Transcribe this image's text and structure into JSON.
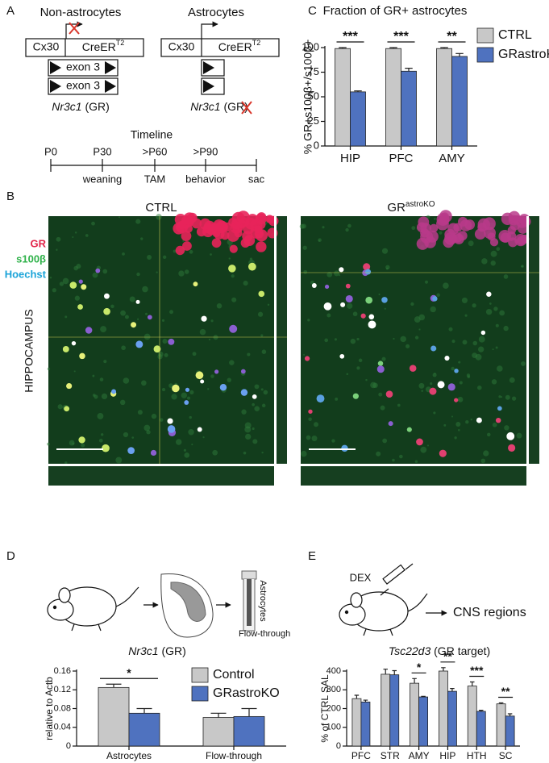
{
  "panel_labels": [
    "A",
    "B",
    "C",
    "D",
    "E"
  ],
  "diagram": {
    "non_astrocytes": "Non-astrocytes",
    "astrocytes": "Astrocytes",
    "promoter": "Cx30",
    "cre": "CreER",
    "cre_sup": "T2",
    "exon": "exon 3",
    "gene": "Nr3c1",
    "gene_suffix": "(GR)",
    "timeline_title": "Timeline",
    "timepoints": [
      "P0",
      "P30",
      ">P60",
      ">P90"
    ],
    "events": [
      "weaning",
      "TAM",
      "behavior",
      "sac"
    ]
  },
  "images": {
    "ctrl": "CTRL",
    "ko": "GR",
    "ko_sup": "astroKO",
    "stains": [
      "GR",
      "s100β",
      "Hoechst"
    ],
    "region": "HIPPOCAMPUS"
  },
  "schematic": {
    "tube_top": "Astrocytes",
    "tube_bottom": "Flow-through",
    "drug": "DEX",
    "target": "CNS regions"
  },
  "chart_data": [
    {
      "type": "bar",
      "title": "Fraction of GR+ astrocytes",
      "ylabel": "% GR+s100β+/s100β+",
      "categories": [
        "HIP",
        "PFC",
        "AMY"
      ],
      "series": [
        {
          "name": "CTRL",
          "color": "#c8c8c8",
          "values": [
            99,
            99,
            99
          ],
          "errors": [
            1,
            1,
            1
          ]
        },
        {
          "name": "GRastroKO",
          "color": "#4f72bf",
          "values": [
            55,
            76,
            91
          ],
          "errors": [
            1,
            3,
            3
          ]
        }
      ],
      "significance": [
        "***",
        "***",
        "**"
      ],
      "ylim": [
        0,
        100
      ],
      "yticks": [
        0,
        25,
        50,
        75,
        100
      ],
      "legend": "right"
    },
    {
      "type": "bar",
      "title": "Nr3c1",
      "title_suffix": "(GR)",
      "ylabel": "relative to Actb",
      "categories": [
        "Astrocytes",
        "Flow-through"
      ],
      "series": [
        {
          "name": "Control",
          "color": "#c8c8c8",
          "values": [
            0.125,
            0.061
          ],
          "errors": [
            0.007,
            0.009
          ]
        },
        {
          "name": "GRastroKO",
          "color": "#4f72bf",
          "values": [
            0.07,
            0.063
          ],
          "errors": [
            0.01,
            0.017
          ]
        }
      ],
      "significance": [
        "*",
        null
      ],
      "ylim": [
        0,
        0.16
      ],
      "yticks": [
        0,
        0.04,
        0.08,
        0.12,
        0.16
      ],
      "legend": "upper right"
    },
    {
      "type": "bar",
      "title": "Tsc22d3",
      "title_suffix": "(GR target)",
      "ylabel": "% of CTRL SAL",
      "categories": [
        "PFC",
        "STR",
        "AMY",
        "HIP",
        "HTH",
        "SC"
      ],
      "series": [
        {
          "name": "CTRL",
          "color": "#c8c8c8",
          "values": [
            253,
            383,
            335,
            400,
            320,
            225
          ],
          "errors": [
            18,
            27,
            25,
            18,
            22,
            5
          ]
        },
        {
          "name": "GRastroKO",
          "color": "#4f72bf",
          "values": [
            235,
            380,
            262,
            292,
            185,
            160
          ],
          "errors": [
            10,
            22,
            3,
            15,
            6,
            12
          ]
        }
      ],
      "significance": [
        null,
        null,
        "*",
        "**",
        "***",
        "**"
      ],
      "ylim": [
        0,
        400
      ],
      "yticks": [
        0,
        100,
        200,
        300,
        400
      ]
    }
  ]
}
